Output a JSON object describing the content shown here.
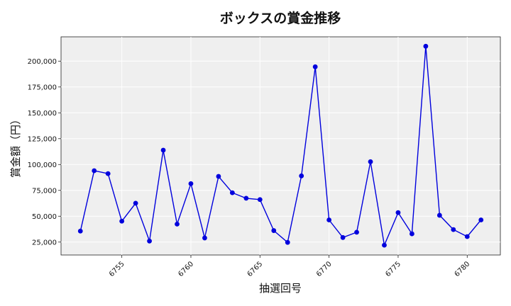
{
  "chart_data": {
    "type": "line",
    "title": "ボックスの賞金推移",
    "xlabel": "抽選回号",
    "ylabel": "賞金額（円）",
    "x": [
      6752,
      6753,
      6754,
      6755,
      6756,
      6757,
      6758,
      6759,
      6760,
      6761,
      6762,
      6763,
      6764,
      6765,
      6766,
      6767,
      6768,
      6769,
      6770,
      6771,
      6772,
      6773,
      6774,
      6775,
      6776,
      6777,
      6778,
      6779,
      6780,
      6781
    ],
    "series": [
      {
        "values": [
          35600,
          94000,
          91200,
          45200,
          62600,
          26000,
          113900,
          42400,
          81500,
          29000,
          88500,
          72700,
          67400,
          66100,
          36100,
          24700,
          89000,
          194500,
          46400,
          29400,
          34500,
          102700,
          22000,
          53500,
          33000,
          214400,
          50900,
          37100,
          30300,
          46400
        ],
        "color": "#0000dd"
      }
    ],
    "xlim": [
      6750.6,
      6782.4
    ],
    "ylim": [
      12500,
      223500
    ],
    "xticks": [
      6755,
      6760,
      6765,
      6770,
      6775,
      6780
    ],
    "xtick_labels": [
      "6755",
      "6760",
      "6765",
      "6770",
      "6775",
      "6780"
    ],
    "yticks": [
      25000,
      50000,
      75000,
      100000,
      125000,
      150000,
      175000,
      200000
    ],
    "ytick_labels": [
      "25,000",
      "50,000",
      "75,000",
      "100,000",
      "125,000",
      "150,000",
      "175,000",
      "200,000"
    ],
    "grid": true,
    "background_color": "#efefef",
    "legend": "none"
  }
}
